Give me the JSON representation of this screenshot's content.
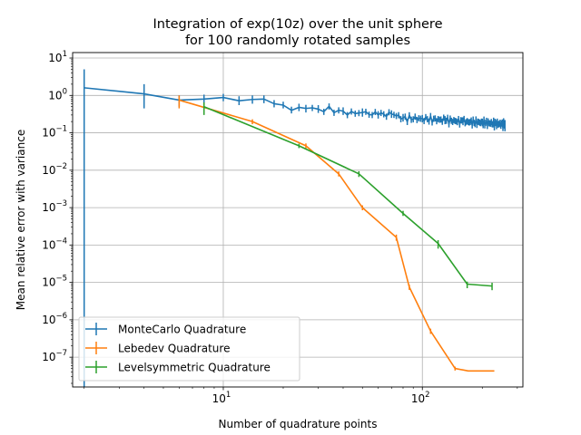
{
  "chart_data": {
    "type": "line",
    "title_lines": [
      "Integration of exp(10z) over the unit sphere",
      "for 100 randomly rotated samples"
    ],
    "xlabel": "Number of quadrature points",
    "ylabel": "Mean relative error with variance",
    "xscale": "log",
    "yscale": "log",
    "xlim": [
      1.75,
      320
    ],
    "ylim": [
      1.6e-08,
      14
    ],
    "grid": true,
    "legend_position": "lower-left",
    "x_ticks": [
      {
        "value": 10,
        "label": "10",
        "sup": "1"
      },
      {
        "value": 100,
        "label": "10",
        "sup": "2"
      }
    ],
    "y_ticks": [
      {
        "value": 10.0,
        "label": "10",
        "sup": "1"
      },
      {
        "value": 1.0,
        "label": "10",
        "sup": "0"
      },
      {
        "value": 0.1,
        "label": "10",
        "sup": "−1"
      },
      {
        "value": 0.01,
        "label": "10",
        "sup": "−2"
      },
      {
        "value": 0.001,
        "label": "10",
        "sup": "−3"
      },
      {
        "value": 0.0001,
        "label": "10",
        "sup": "−4"
      },
      {
        "value": 1e-05,
        "label": "10",
        "sup": "−5"
      },
      {
        "value": 1e-06,
        "label": "10",
        "sup": "−6"
      },
      {
        "value": 1e-07,
        "label": "10",
        "sup": "−7"
      }
    ],
    "series": [
      {
        "name": "MonteCarlo Quadrature",
        "color": "#1f77b4",
        "generated_range": [
          2,
          260
        ],
        "points": [
          {
            "x": 2,
            "y": 1.6,
            "lo": 1e-09,
            "hi": 5.0
          },
          {
            "x": 4,
            "y": 1.1,
            "lo": 0.45,
            "hi": 2.0
          },
          {
            "x": 6,
            "y": 0.75,
            "lo": 0.5,
            "hi": 1.0
          },
          {
            "x": 8,
            "y": 0.8,
            "lo": 0.55,
            "hi": 1.05
          },
          {
            "x": 10,
            "y": 0.88,
            "lo": 0.7,
            "hi": 1.1
          },
          {
            "x": 12,
            "y": 0.72,
            "lo": 0.55,
            "hi": 0.95
          },
          {
            "x": 14,
            "y": 0.78,
            "lo": 0.6,
            "hi": 1.0
          },
          {
            "x": 16,
            "y": 0.8,
            "lo": 0.62,
            "hi": 1.0
          },
          {
            "x": 18,
            "y": 0.6,
            "lo": 0.48,
            "hi": 0.75
          },
          {
            "x": 20,
            "y": 0.55,
            "lo": 0.45,
            "hi": 0.68
          },
          {
            "x": 22,
            "y": 0.4,
            "lo": 0.33,
            "hi": 0.5
          },
          {
            "x": 24,
            "y": 0.48,
            "lo": 0.38,
            "hi": 0.6
          },
          {
            "x": 26,
            "y": 0.45,
            "lo": 0.35,
            "hi": 0.56
          },
          {
            "x": 30,
            "y": 0.43,
            "lo": 0.34,
            "hi": 0.55
          },
          {
            "x": 35,
            "y": 0.42,
            "lo": 0.33,
            "hi": 0.53
          },
          {
            "x": 40,
            "y": 0.38,
            "lo": 0.3,
            "hi": 0.48
          },
          {
            "x": 45,
            "y": 0.33,
            "lo": 0.26,
            "hi": 0.42
          },
          {
            "x": 50,
            "y": 0.35,
            "lo": 0.27,
            "hi": 0.45
          },
          {
            "x": 60,
            "y": 0.3,
            "lo": 0.24,
            "hi": 0.38
          },
          {
            "x": 70,
            "y": 0.32,
            "lo": 0.25,
            "hi": 0.4
          },
          {
            "x": 80,
            "y": 0.25,
            "lo": 0.2,
            "hi": 0.32
          },
          {
            "x": 100,
            "y": 0.24,
            "lo": 0.19,
            "hi": 0.3
          },
          {
            "x": 130,
            "y": 0.22,
            "lo": 0.17,
            "hi": 0.28
          },
          {
            "x": 160,
            "y": 0.2,
            "lo": 0.16,
            "hi": 0.26
          },
          {
            "x": 200,
            "y": 0.19,
            "lo": 0.15,
            "hi": 0.24
          },
          {
            "x": 260,
            "y": 0.17,
            "lo": 0.11,
            "hi": 0.22
          }
        ]
      },
      {
        "name": "Lebedev Quadrature",
        "color": "#ff7f0e",
        "points": [
          {
            "x": 6,
            "y": 0.75,
            "lo": 0.45,
            "hi": 1.0
          },
          {
            "x": 14,
            "y": 0.2,
            "lo": 0.17,
            "hi": 0.23
          },
          {
            "x": 26,
            "y": 0.045,
            "lo": 0.038,
            "hi": 0.052
          },
          {
            "x": 38,
            "y": 0.008,
            "lo": 0.0068,
            "hi": 0.0093
          },
          {
            "x": 50,
            "y": 0.001,
            "lo": 0.00085,
            "hi": 0.00115
          },
          {
            "x": 74,
            "y": 0.00016,
            "lo": 0.00013,
            "hi": 0.00019
          },
          {
            "x": 86,
            "y": 7.5e-06,
            "lo": 6.3e-06,
            "hi": 8.7e-06
          },
          {
            "x": 110,
            "y": 5e-07,
            "lo": 4.2e-07,
            "hi": 5.8e-07
          },
          {
            "x": 146,
            "y": 5e-08,
            "lo": 4.4e-08,
            "hi": 5.6e-08
          },
          {
            "x": 170,
            "y": 4.3e-08,
            "lo": 4.3e-08,
            "hi": 4.3e-08
          },
          {
            "x": 230,
            "y": 4.3e-08,
            "lo": 4.3e-08,
            "hi": 4.3e-08
          }
        ]
      },
      {
        "name": "Levelsymmetric Quadrature",
        "color": "#2ca02c",
        "points": [
          {
            "x": 8,
            "y": 0.5,
            "lo": 0.3,
            "hi": 0.65
          },
          {
            "x": 24,
            "y": 0.045,
            "lo": 0.039,
            "hi": 0.051
          },
          {
            "x": 48,
            "y": 0.008,
            "lo": 0.0066,
            "hi": 0.0094
          },
          {
            "x": 80,
            "y": 0.0007,
            "lo": 0.0006,
            "hi": 0.00082
          },
          {
            "x": 120,
            "y": 0.00011,
            "lo": 8e-05,
            "hi": 0.000135
          },
          {
            "x": 168,
            "y": 9e-06,
            "lo": 7e-06,
            "hi": 1.05e-05
          },
          {
            "x": 224,
            "y": 8e-06,
            "lo": 6.2e-06,
            "hi": 9.8e-06
          }
        ]
      }
    ]
  }
}
